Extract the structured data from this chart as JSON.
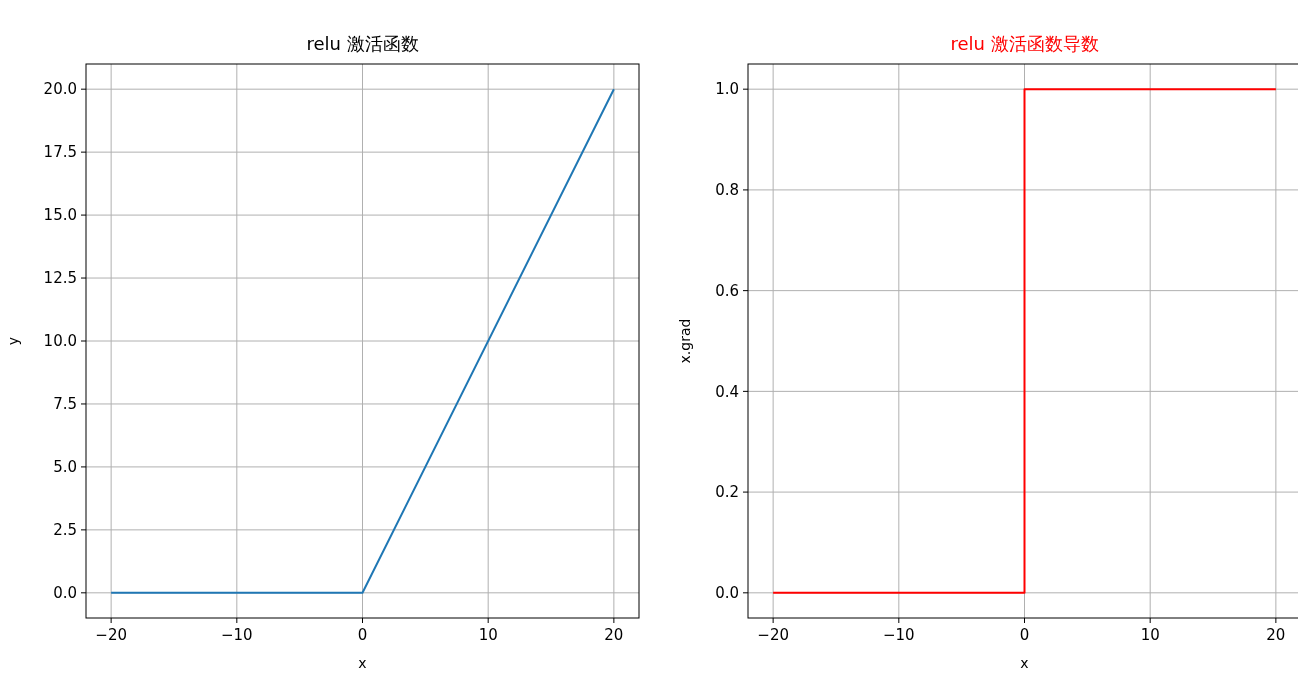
{
  "chart_data": [
    {
      "type": "line",
      "title": "relu 激活函数",
      "xlabel": "x",
      "ylabel": "y",
      "x": [
        -20,
        0,
        20
      ],
      "series": [
        {
          "color": "#1f77b4",
          "values": [
            0,
            0,
            20
          ]
        }
      ],
      "xlim": [
        -22,
        22
      ],
      "xticks": [
        -20,
        -10,
        0,
        10,
        20
      ],
      "ylim": [
        -1,
        21
      ],
      "yticks": [
        {
          "value": 0,
          "label": "0.0"
        },
        2.5,
        {
          "value": 5,
          "label": "5.0"
        },
        7.5,
        {
          "value": 10,
          "label": "10.0"
        },
        12.5,
        {
          "value": 15,
          "label": "15.0"
        },
        17.5,
        {
          "value": 20,
          "label": "20.0"
        }
      ],
      "grid": true
    },
    {
      "type": "line",
      "title": "relu 激活函数导数",
      "xlabel": "x",
      "ylabel": "x.grad",
      "x": [
        -20,
        0,
        0,
        20
      ],
      "series": [
        {
          "color": "#ff0000",
          "values": [
            0,
            0,
            1,
            1
          ]
        }
      ],
      "xlim": [
        -22,
        22
      ],
      "xticks": [
        -20,
        -10,
        0,
        10,
        20
      ],
      "ylim": [
        -0.05,
        1.05
      ],
      "yticks": [
        {
          "value": 0,
          "label": "0.0"
        },
        0.2,
        0.4,
        0.6,
        0.8,
        {
          "value": 1,
          "label": "1.0"
        }
      ],
      "grid": true
    }
  ]
}
